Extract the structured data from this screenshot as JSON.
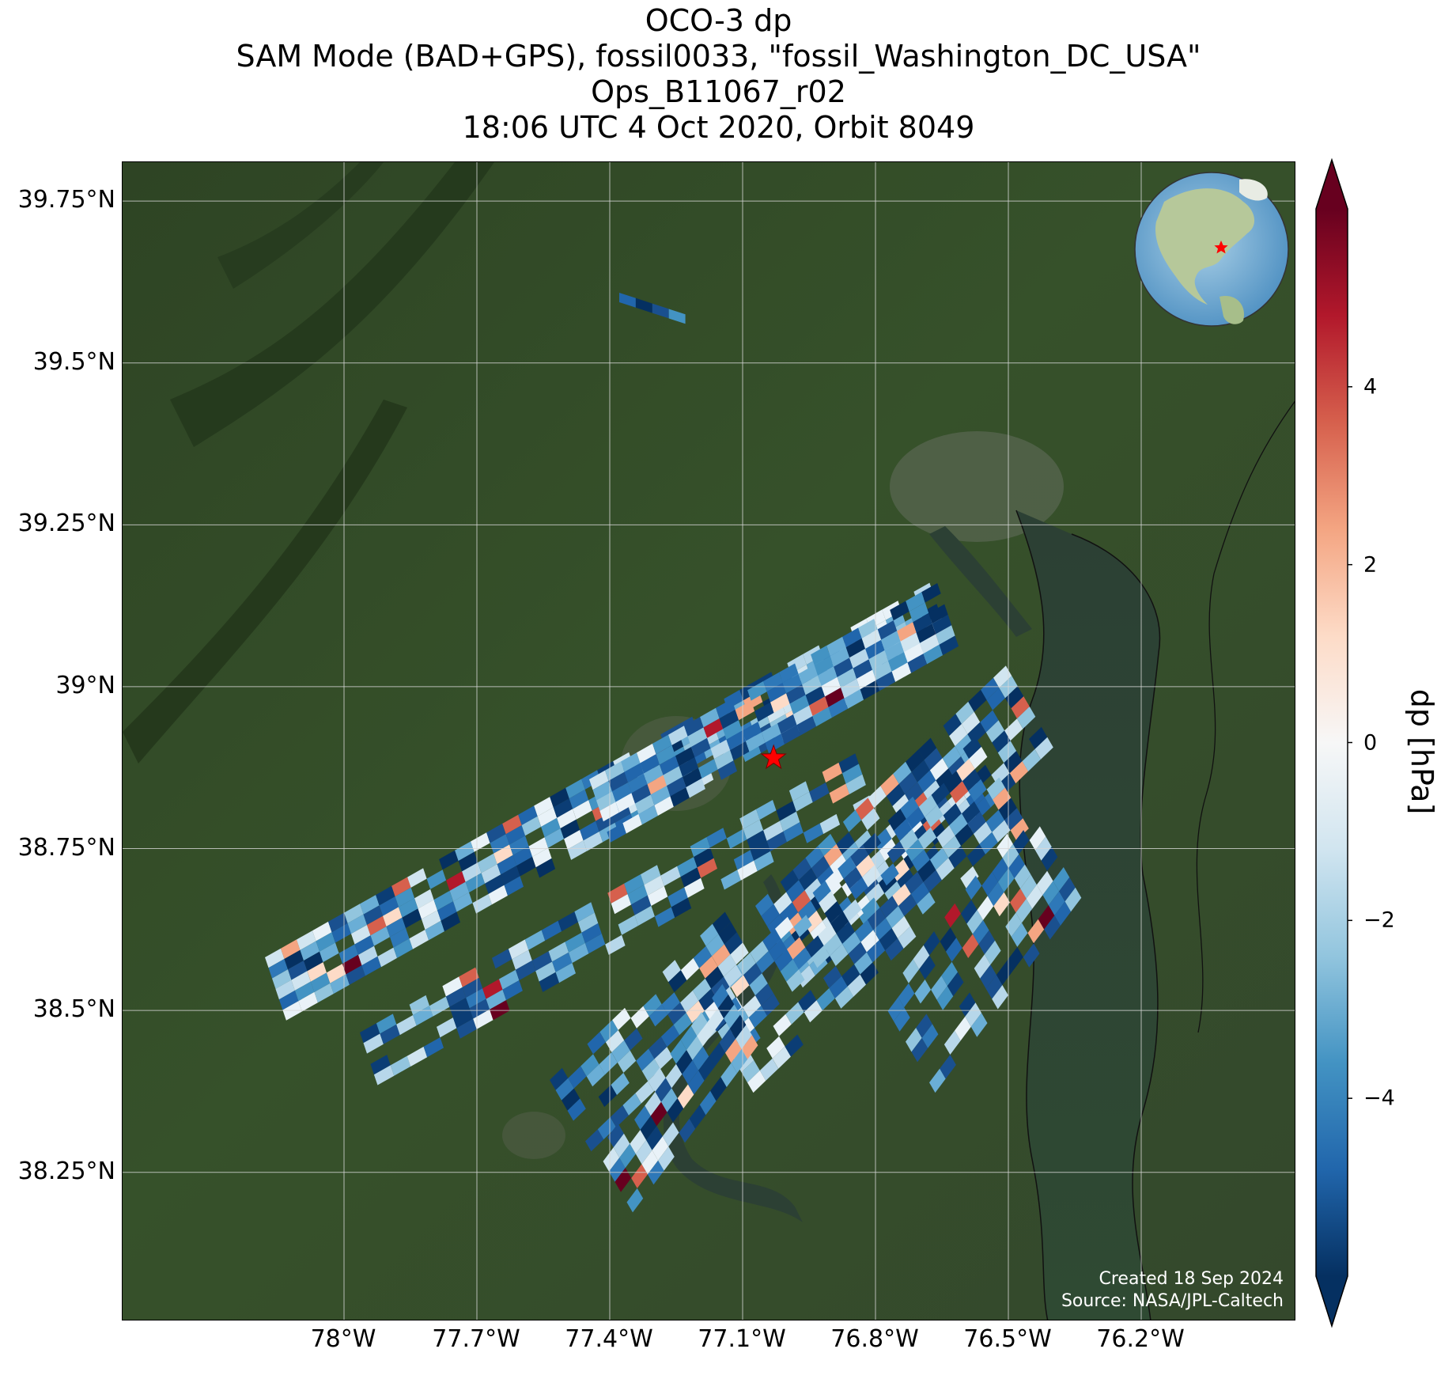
{
  "title": {
    "line1": "OCO-3 dp",
    "line2": "SAM Mode (BAD+GPS), fossil0033, \"fossil_Washington_DC_USA\"",
    "line3": "Ops_B11067_r02",
    "line4": "18:06 UTC 4 Oct 2020, Orbit 8049"
  },
  "map": {
    "lon_range": [
      -78.5,
      -75.85
    ],
    "lat_range": [
      38.02,
      39.81
    ],
    "x_ticks": [
      {
        "value": -78.0,
        "label": "78°W"
      },
      {
        "value": -77.7,
        "label": "77.7°W"
      },
      {
        "value": -77.4,
        "label": "77.4°W"
      },
      {
        "value": -77.1,
        "label": "77.1°W"
      },
      {
        "value": -76.8,
        "label": "76.8°W"
      },
      {
        "value": -76.5,
        "label": "76.5°W"
      },
      {
        "value": -76.2,
        "label": "76.2°W"
      }
    ],
    "y_ticks": [
      {
        "value": 39.75,
        "label": "39.75°N"
      },
      {
        "value": 39.5,
        "label": "39.5°N"
      },
      {
        "value": 39.25,
        "label": "39.25°N"
      },
      {
        "value": 39.0,
        "label": "39°N"
      },
      {
        "value": 38.75,
        "label": "38.75°N"
      },
      {
        "value": 38.5,
        "label": "38.5°N"
      },
      {
        "value": 38.25,
        "label": "38.25°N"
      }
    ],
    "target_marker": {
      "lon": -77.03,
      "lat": 38.89,
      "color": "#ff0000"
    },
    "inset_globe_marker": {
      "color": "#ff0000"
    },
    "gridlines": true,
    "basemap": "satellite imagery"
  },
  "credit": {
    "created": "Created 18 Sep 2024",
    "source": "Source: NASA/JPL-Caltech"
  },
  "colorbar": {
    "label": "dp [hPa]",
    "vmin": -6,
    "vmax": 6,
    "extend": "both",
    "colormap": "RdBu_r",
    "ticks": [
      {
        "value": 4,
        "label": "4"
      },
      {
        "value": 2,
        "label": "2"
      },
      {
        "value": 0,
        "label": "0"
      },
      {
        "value": -2,
        "label": "−2"
      },
      {
        "value": -4,
        "label": "−4"
      }
    ]
  }
}
